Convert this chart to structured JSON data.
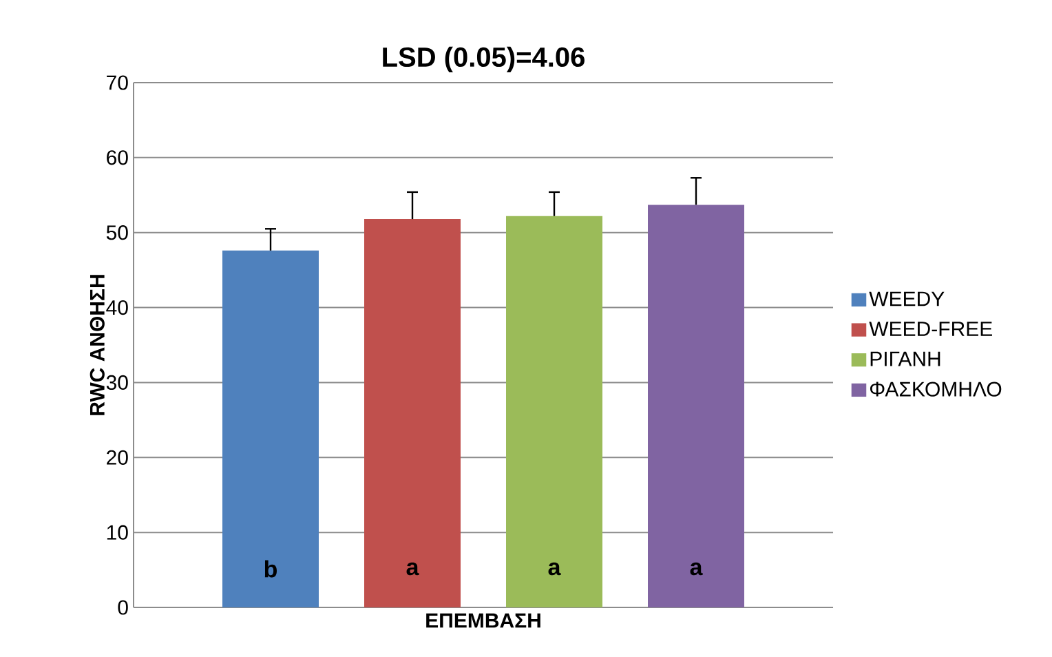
{
  "chart_data": {
    "type": "bar",
    "title": "LSD (0.05)=4.06",
    "xlabel": "ΕΠΕΜΒΑΣΗ",
    "ylabel": "RWC ΑΝΘΗΣΗ",
    "categories": [
      null
    ],
    "series": [
      {
        "name": "WEEDY",
        "color": "#4f81bd",
        "values": [
          47.6
        ],
        "errors": [
          [
            47.6,
            50.5
          ]
        ]
      },
      {
        "name": "WEED-FREE",
        "color": "#c0504d",
        "values": [
          51.8
        ],
        "errors": [
          [
            51.8,
            55.4
          ]
        ]
      },
      {
        "name": "ΡΙΓΑΝΗ",
        "color": "#9bbb59",
        "values": [
          52.2
        ],
        "errors": [
          [
            52.2,
            55.4
          ]
        ]
      },
      {
        "name": "ΦΑΣΚΟΜΗΛΟ",
        "color": "#8064a2",
        "values": [
          53.7
        ],
        "errors": [
          [
            53.7,
            57.3
          ]
        ]
      }
    ],
    "annotations": [
      "b",
      "a",
      "a",
      "a"
    ],
    "ylim": [
      0,
      70
    ],
    "yticks": [
      0,
      10,
      20,
      30,
      40,
      50,
      60,
      70
    ],
    "grid": "y",
    "legend": "right"
  }
}
